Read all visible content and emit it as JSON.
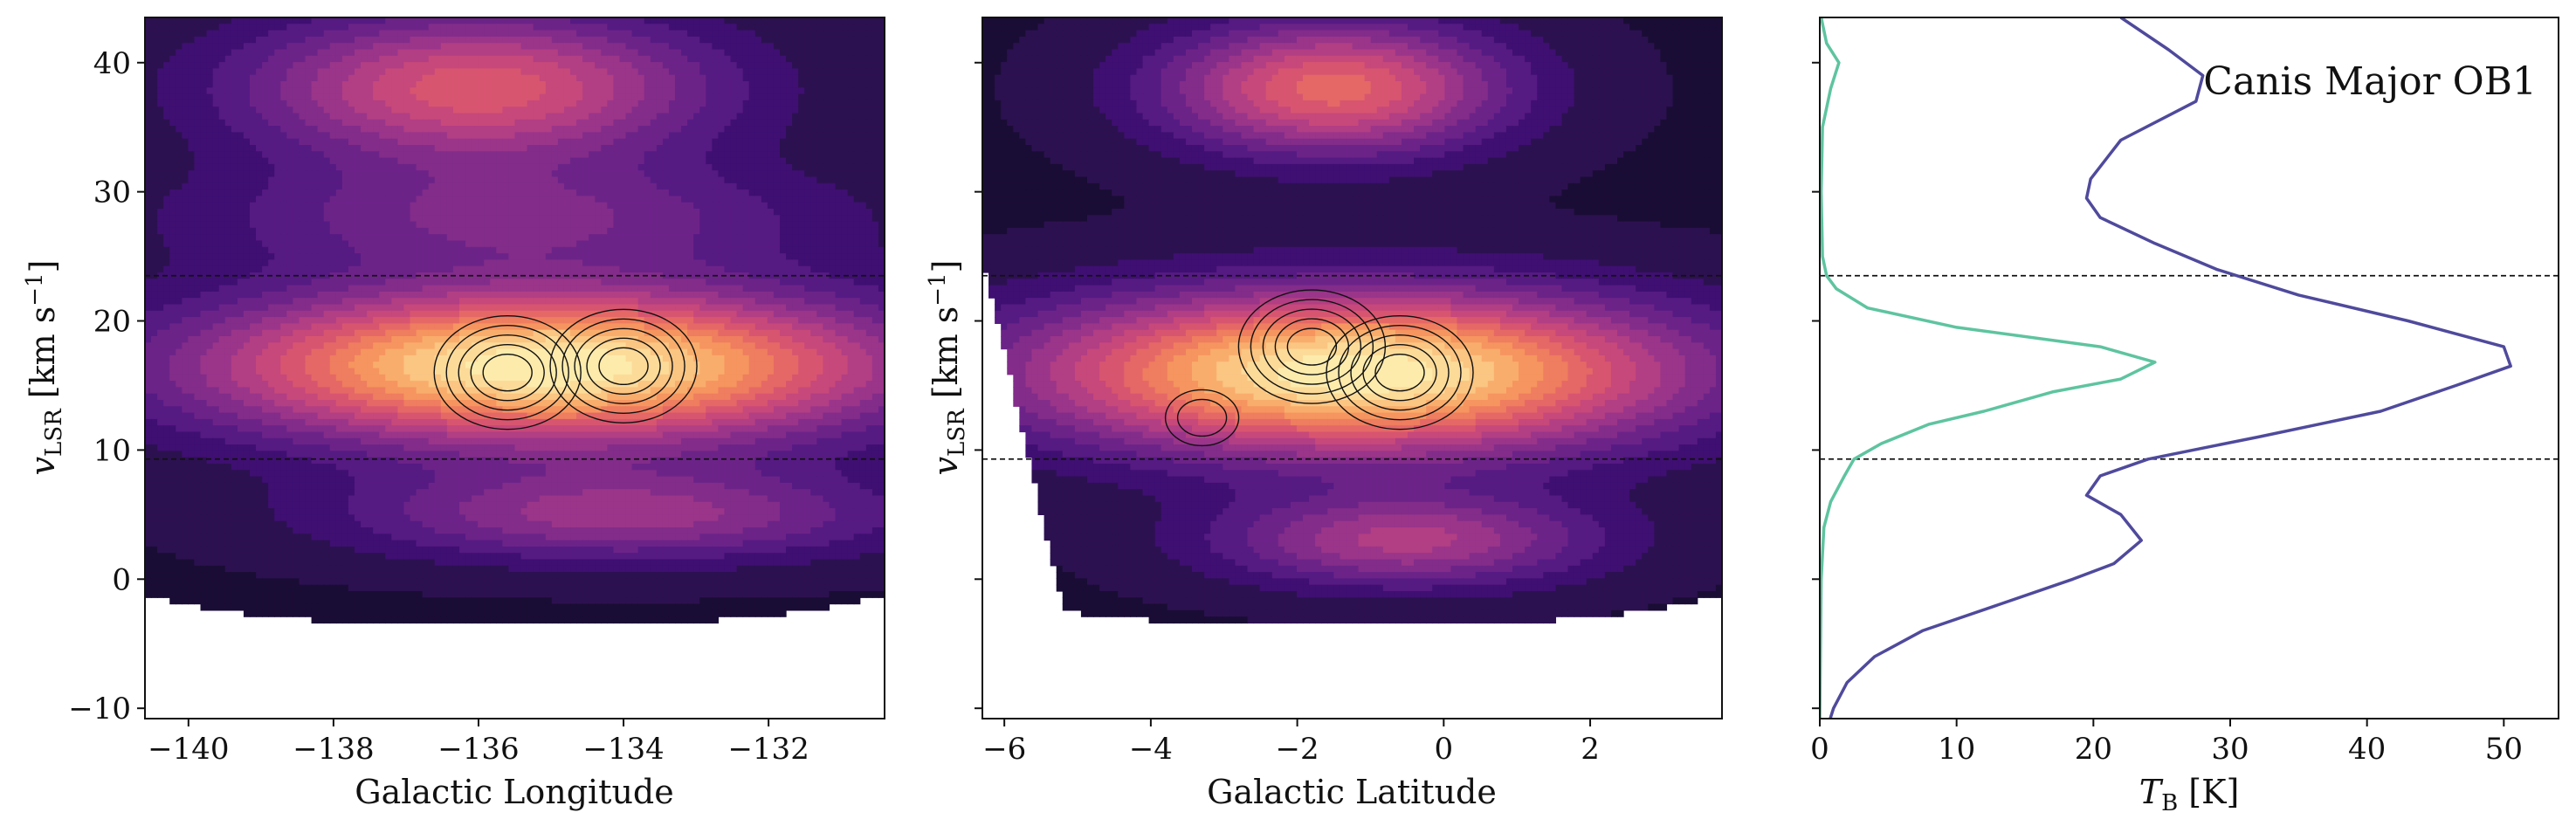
{
  "figure": {
    "panels": [
      {
        "id": "lon",
        "xlabel": "Galactic Longitude",
        "ylabel_main": "v",
        "ylabel_sub": "LSR",
        "ylabel_unit": " [km s",
        "ylabel_sup": "−1",
        "ylabel_close": "]"
      },
      {
        "id": "lat",
        "xlabel": "Galactic Latitude",
        "ylabel_main": "v",
        "ylabel_sub": "LSR",
        "ylabel_unit": " [km s",
        "ylabel_sup": "−1",
        "ylabel_close": "]"
      },
      {
        "id": "spec",
        "xlabel_main": "T",
        "xlabel_sub": "B",
        "xlabel_unit": " [K]",
        "annotation": "Canis Major OB1"
      }
    ]
  },
  "colors": {
    "spectrum_total": "#4f4a9c",
    "spectrum_feature": "#5ec4a0",
    "contour_line": "#111111",
    "magma_levels": [
      "#1a0d35",
      "#2c1150",
      "#3f0f72",
      "#561a83",
      "#6c2388",
      "#832c8a",
      "#9a358a",
      "#b23e84",
      "#c7487a",
      "#d85570",
      "#e56866",
      "#ef7d5f",
      "#f6955f",
      "#f9ad6c",
      "#fbc582",
      "#fcdb99",
      "#fdebac"
    ]
  },
  "chart_data": [
    {
      "type": "heatmap",
      "panel": "lon",
      "xlabel": "Galactic Longitude",
      "ylabel": "vLSR [km s−1]",
      "xlim": [
        -140.6,
        -130.4
      ],
      "ylim": [
        -10.8,
        43.5
      ],
      "xticks": [
        -140,
        -138,
        -136,
        -134,
        -132
      ],
      "xtick_labels": [
        "−140",
        "−138",
        "−136",
        "−134",
        "−132"
      ],
      "yticks": [
        -10,
        0,
        10,
        20,
        30,
        40
      ],
      "ytick_labels": [
        "−10",
        "0",
        "10",
        "20",
        "30",
        "40"
      ],
      "velocity_band": [
        9.3,
        23.5
      ],
      "emission_blobs": [
        {
          "x": -135.0,
          "y": 16.5,
          "sx": 3.2,
          "sy": 4.0,
          "amp": 1.0
        },
        {
          "x": -136.0,
          "y": 38.0,
          "sx": 2.2,
          "sy": 4.0,
          "amp": 0.55
        },
        {
          "x": -134.0,
          "y": 5.0,
          "sx": 2.6,
          "sy": 2.5,
          "amp": 0.35
        },
        {
          "x": -135.5,
          "y": 28.0,
          "sx": 3.0,
          "sy": 3.0,
          "amp": 0.25
        }
      ],
      "feature_contour_centers": [
        {
          "x": -135.6,
          "y": 16.0
        },
        {
          "x": -134.0,
          "y": 16.5
        }
      ]
    },
    {
      "type": "heatmap",
      "panel": "lat",
      "xlabel": "Galactic Latitude",
      "ylabel": "vLSR [km s−1]",
      "xlim": [
        -6.3,
        3.8
      ],
      "ylim": [
        -10.8,
        43.5
      ],
      "xticks": [
        -6,
        -4,
        -2,
        0,
        2
      ],
      "xtick_labels": [
        "−6",
        "−4",
        "−2",
        "0",
        "2"
      ],
      "yticks": [
        -10,
        0,
        10,
        20,
        30,
        40
      ],
      "velocity_band": [
        9.3,
        23.5
      ],
      "emission_blobs": [
        {
          "x": -1.2,
          "y": 16.0,
          "sx": 3.0,
          "sy": 4.2,
          "amp": 1.0
        },
        {
          "x": -1.5,
          "y": 38.0,
          "sx": 1.6,
          "sy": 3.5,
          "amp": 0.6
        },
        {
          "x": -0.5,
          "y": 3.0,
          "sx": 1.8,
          "sy": 2.5,
          "amp": 0.4
        }
      ],
      "feature_contour_centers": [
        {
          "x": -1.8,
          "y": 18.0
        },
        {
          "x": -0.6,
          "y": 16.0
        },
        {
          "x": -3.3,
          "y": 12.5
        }
      ]
    },
    {
      "type": "line",
      "panel": "spec",
      "xlabel": "TB [K]",
      "annotation": "Canis Major OB1",
      "xlim": [
        0,
        54
      ],
      "ylim": [
        -10.8,
        43.5
      ],
      "xticks": [
        0,
        10,
        20,
        30,
        40,
        50
      ],
      "xtick_labels": [
        "0",
        "10",
        "20",
        "30",
        "40",
        "50"
      ],
      "yticks": [
        -10,
        0,
        10,
        20,
        30,
        40
      ],
      "velocity_band": [
        9.3,
        23.5
      ],
      "series": [
        {
          "y": [
            -11.0,
            -10.0,
            -8.0,
            -6.0,
            -4.0,
            -2.0,
            0.0,
            1.2,
            3.0,
            5.0,
            6.5,
            8.0,
            9.3,
            11.0,
            13.0,
            15.0,
            16.5,
            18.0,
            20.0,
            22.0,
            24.0,
            26.0,
            28.0,
            29.5,
            31.0,
            34.0,
            37.0,
            39.0,
            41.0,
            43.5
          ],
          "x": [
            0.7,
            1.0,
            2.0,
            4.0,
            7.5,
            13.0,
            18.5,
            21.5,
            23.5,
            22.0,
            19.5,
            20.5,
            24.0,
            32.0,
            41.0,
            46.5,
            50.5,
            50.0,
            43.0,
            35.0,
            29.0,
            24.5,
            20.5,
            19.5,
            19.8,
            22.0,
            27.5,
            28.0,
            25.5,
            22.0
          ]
        },
        {
          "y": [
            -11.0,
            0.0,
            4.0,
            6.0,
            8.0,
            9.3,
            10.5,
            12.0,
            13.0,
            14.5,
            15.5,
            16.8,
            18.0,
            19.5,
            21.0,
            22.5,
            23.5,
            25.0,
            30.0,
            35.0,
            38.0,
            40.0,
            41.5,
            43.5
          ],
          "x": [
            0.0,
            0.1,
            0.3,
            0.8,
            1.8,
            2.5,
            4.5,
            8.0,
            12.0,
            17.0,
            22.0,
            24.5,
            20.5,
            10.0,
            3.5,
            1.2,
            0.5,
            0.2,
            0.1,
            0.2,
            0.8,
            1.4,
            0.5,
            0.1
          ]
        }
      ]
    }
  ]
}
